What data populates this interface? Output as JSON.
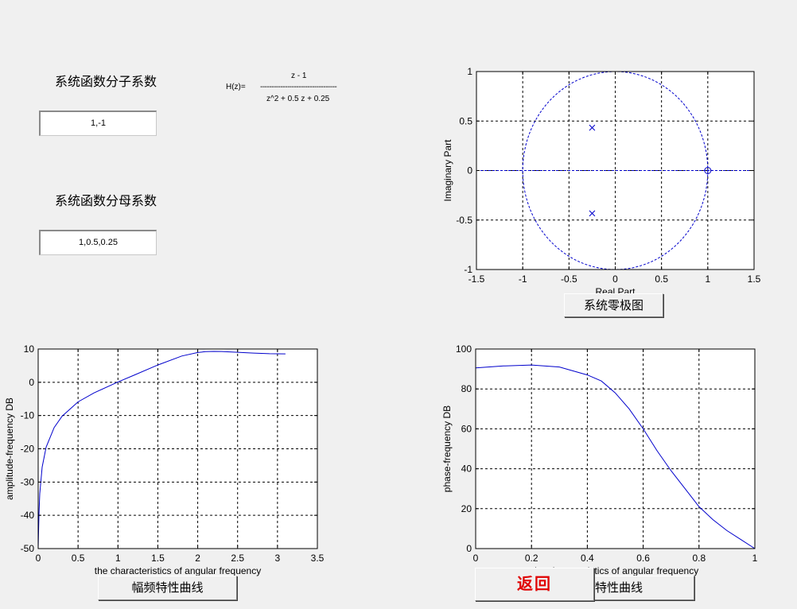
{
  "numerator": {
    "label": "系统函数分子系数",
    "value": "1,-1"
  },
  "denominator": {
    "label": "系统函数分母系数",
    "value": "1,0.5,0.25"
  },
  "transfer": {
    "lhs": "H(z)=",
    "num": "z - 1",
    "dashes": "----------------------------------",
    "den": "z^2 + 0.5 z + 0.25"
  },
  "buttons": {
    "zero_pole": "系统零极图",
    "amplitude": "幅频特性曲线",
    "phase": "相频特性曲线",
    "back": "返回"
  },
  "colors": {
    "trace": "#0000cc",
    "back_text": "#e00000",
    "background": "#f0f0f0"
  },
  "chart_data": [
    {
      "type": "scatter",
      "name": "zero-pole plot",
      "xlabel": "Real Part",
      "ylabel": "Imaginary Part",
      "xlim": [
        -1.5,
        1.5
      ],
      "ylim": [
        -1,
        1
      ],
      "xticks": [
        "-1.5",
        "-1",
        "-0.5",
        "0",
        "0.5",
        "1",
        "1.5"
      ],
      "yticks": [
        "-1",
        "-0.5",
        "0",
        "0.5",
        "1"
      ],
      "grid": true,
      "unit_circle": true,
      "zeros": [
        [
          1,
          0
        ]
      ],
      "poles": [
        [
          -0.25,
          0.433
        ],
        [
          -0.25,
          -0.433
        ]
      ]
    },
    {
      "type": "line",
      "name": "amplitude-frequency",
      "xlabel": "the characteristics of angular frequency",
      "ylabel": "amplitude-frequency DB",
      "xlim": [
        0,
        3.5
      ],
      "ylim": [
        -50,
        10
      ],
      "xticks": [
        "0",
        "0.5",
        "1",
        "1.5",
        "2",
        "2.5",
        "3",
        "3.5"
      ],
      "yticks": [
        "-50",
        "-40",
        "-30",
        "-20",
        "-10",
        "0",
        "10"
      ],
      "grid": true,
      "x": [
        0,
        0.01,
        0.02,
        0.05,
        0.1,
        0.2,
        0.3,
        0.5,
        0.7,
        1,
        1.2,
        1.5,
        1.8,
        2,
        2.1,
        2.2,
        2.3,
        2.5,
        2.7,
        2.9,
        3.1
      ],
      "y": [
        -50,
        -39.5,
        -33.5,
        -25.5,
        -19.5,
        -13.6,
        -10.2,
        -5.9,
        -3.2,
        0.1,
        2.1,
        5.2,
        7.9,
        8.94,
        9.21,
        9.29,
        9.26,
        9.03,
        8.79,
        8.6,
        8.53
      ]
    },
    {
      "type": "line",
      "name": "phase-frequency",
      "xlabel": "the characteristics of angular frequency",
      "ylabel": "phase-frequency DB",
      "xlim": [
        0,
        1
      ],
      "ylim": [
        0,
        100
      ],
      "xticks": [
        "0",
        "0.2",
        "0.4",
        "0.6",
        "0.8",
        "1"
      ],
      "yticks": [
        "0",
        "20",
        "40",
        "60",
        "80",
        "100"
      ],
      "grid": true,
      "x": [
        0,
        0.1,
        0.2,
        0.3,
        0.4,
        0.45,
        0.5,
        0.55,
        0.6,
        0.65,
        0.7,
        0.75,
        0.8,
        0.85,
        0.9,
        0.95,
        1
      ],
      "y": [
        90.5,
        91.5,
        92,
        91,
        87,
        84,
        78,
        70,
        60,
        49,
        39,
        30,
        21,
        14.5,
        9,
        4.5,
        0
      ]
    }
  ]
}
